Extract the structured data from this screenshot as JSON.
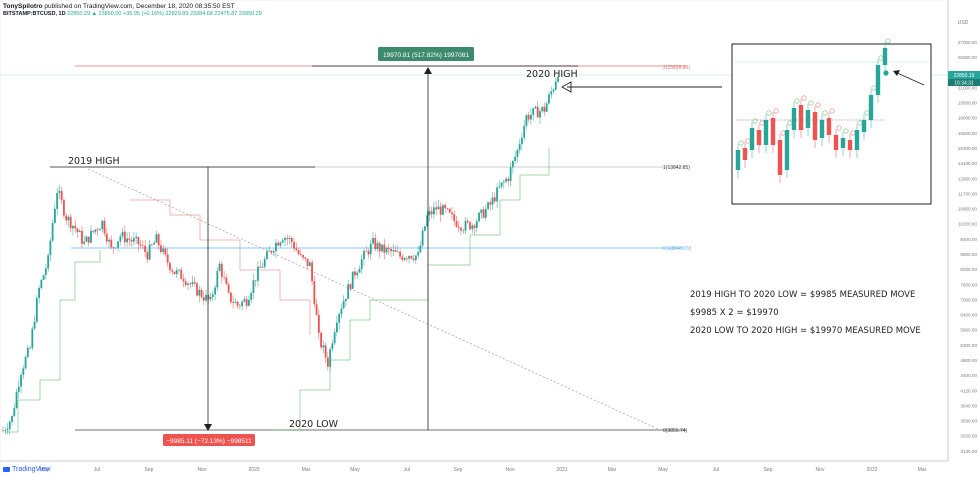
{
  "header": {
    "publisher": "TonySpilotro",
    "published_text": "published on TradingView.com, December 18, 2020 08:35:50 EST",
    "symbol": "BITSTAMP:BTCUSD, 1D",
    "ohlc": "22850.29 ▲ 23850.00 +35.95 (+0.16%) 22829.89 23284.68 22475.87 22850.29"
  },
  "footer": {
    "brand": "TradingView"
  },
  "colors": {
    "up": "#26a69a",
    "down": "#ef5350",
    "label_green": "#3d8a6f",
    "label_red": "#ef5350",
    "fib_red": "#e57373",
    "fib_blue": "#64b5f6",
    "trail_green": "#4caf50"
  },
  "annotations": {
    "label_2019_high": "2019 HIGH",
    "label_2020_low": "2020 LOW",
    "label_2020_high": "2020 HIGH",
    "measure_up": "19970.81 (517.82%) 1997081",
    "measure_down": "−9985.11 (−72.13%) −998511",
    "fib_top": "2(23828.96)",
    "fib_one": "1(13842.85)",
    "fib_half": "0.5(8849.79)",
    "fib_zero": "0(3856.74)",
    "text_line1": "2019 HIGH TO 2020 LOW = $9985 MEASURED MOVE",
    "text_line2": "$9985 X 2 = $19970",
    "text_line3": "2020 LOW TO 2020 HIGH = $19970 MEASURED MOVE",
    "usd": "USD",
    "price_tag": "22850.19",
    "time_tag": "10:34:31"
  },
  "chart_data": {
    "type": "candlestick",
    "scale": "log",
    "ylim": [
      2800,
      30000
    ],
    "y_ticks": [
      "27000.00",
      "25000.00",
      "23000.00",
      "21000.00",
      "19500.00",
      "18000.00",
      "16500.00",
      "15300.00",
      "14100.00",
      "12900.00",
      "11700.00",
      "10950.00",
      "10200.00",
      "9400.00",
      "8800.00",
      "8200.00",
      "7600.00",
      "7000.00",
      "6400.00",
      "5800.00",
      "5300.00",
      "4800.00",
      "4400.00",
      "4120.00",
      "3840.00",
      "3590.00",
      "3320.00",
      "3130.00"
    ],
    "x_ticks": [
      "May",
      "Jul",
      "Sep",
      "Nov",
      "2020",
      "Mar",
      "May",
      "Jul",
      "Sep",
      "Nov",
      "2021",
      "Mar",
      "May",
      "Jul",
      "Sep",
      "Nov",
      "2022",
      "Mar"
    ],
    "levels": {
      "2019_high": 13842.85,
      "2020_low": 3856.74,
      "2020_high_target": 23828.96,
      "mid_0_5": 8849.79
    },
    "measured_moves": [
      {
        "from": "2019 HIGH",
        "to": "2020 LOW",
        "change": -9985.11,
        "percent": -72.13
      },
      {
        "from": "2020 LOW",
        "to": "2020 HIGH",
        "change": 19970.81,
        "percent": 517.82
      }
    ],
    "price_path": [
      [
        0,
        3850
      ],
      [
        6,
        4100
      ],
      [
        12,
        5200
      ],
      [
        18,
        5800
      ],
      [
        24,
        7800
      ],
      [
        30,
        9000
      ],
      [
        36,
        12800
      ],
      [
        42,
        11200
      ],
      [
        48,
        10600
      ],
      [
        54,
        9800
      ],
      [
        60,
        10400
      ],
      [
        66,
        10900
      ],
      [
        72,
        9500
      ],
      [
        78,
        10200
      ],
      [
        84,
        10000
      ],
      [
        90,
        9800
      ],
      [
        96,
        9300
      ],
      [
        102,
        10000
      ],
      [
        108,
        9100
      ],
      [
        114,
        8500
      ],
      [
        120,
        8300
      ],
      [
        126,
        7900
      ],
      [
        132,
        7600
      ],
      [
        138,
        7300
      ],
      [
        144,
        8800
      ],
      [
        150,
        7500
      ],
      [
        156,
        7200
      ],
      [
        162,
        7400
      ],
      [
        168,
        8300
      ],
      [
        174,
        9000
      ],
      [
        180,
        9700
      ],
      [
        186,
        10200
      ],
      [
        192,
        9900
      ],
      [
        198,
        9100
      ],
      [
        204,
        8800
      ],
      [
        210,
        6100
      ],
      [
        216,
        5400
      ],
      [
        222,
        6800
      ],
      [
        228,
        7600
      ],
      [
        234,
        8500
      ],
      [
        240,
        9200
      ],
      [
        246,
        9800
      ],
      [
        252,
        9500
      ],
      [
        258,
        9400
      ],
      [
        264,
        9200
      ],
      [
        270,
        9300
      ],
      [
        276,
        9200
      ],
      [
        282,
        11200
      ],
      [
        288,
        11700
      ],
      [
        294,
        11500
      ],
      [
        300,
        11000
      ],
      [
        306,
        10700
      ],
      [
        312,
        10800
      ],
      [
        318,
        11300
      ],
      [
        324,
        11900
      ],
      [
        330,
        12900
      ],
      [
        336,
        13700
      ],
      [
        342,
        15600
      ],
      [
        348,
        18500
      ],
      [
        354,
        18900
      ],
      [
        360,
        19200
      ],
      [
        366,
        21500
      ],
      [
        369,
        23200
      ]
    ]
  }
}
